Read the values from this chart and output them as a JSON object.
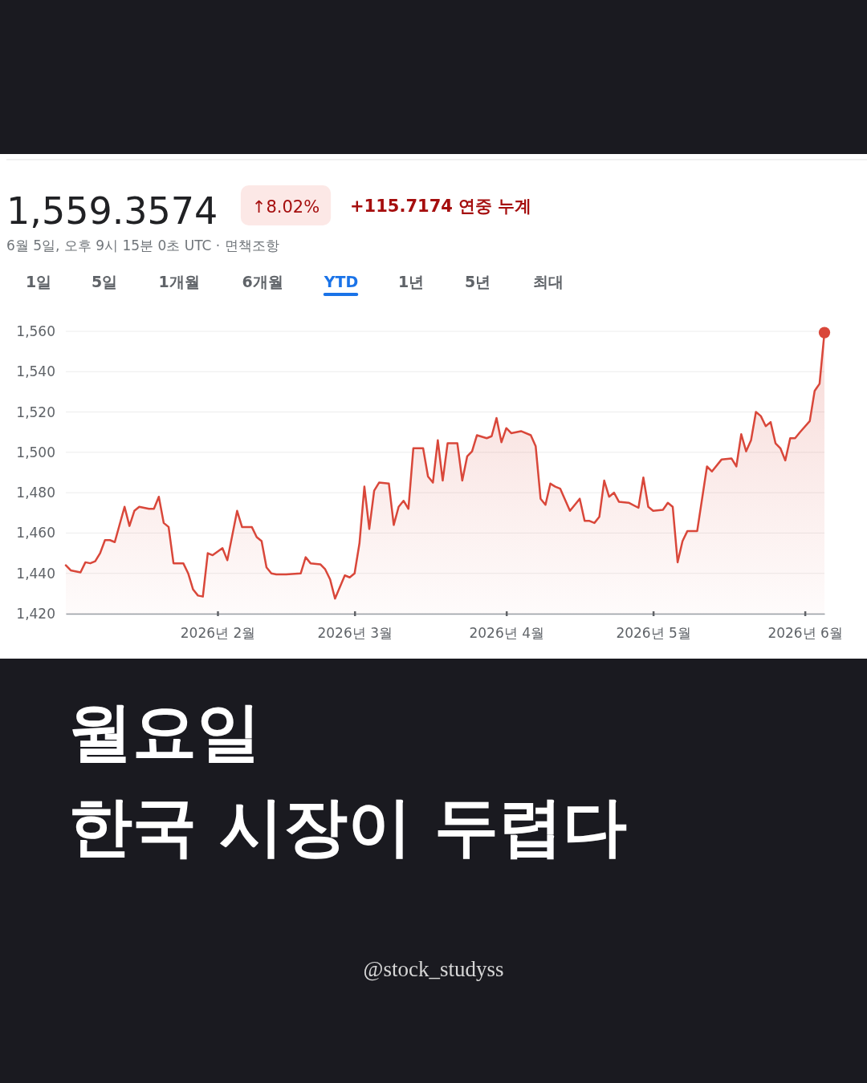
{
  "chart_data": {
    "type": "area",
    "title": "1,559.3574",
    "subtitle": "6월 5일, 오후 9시 15분 0초 UTC · 면책조항",
    "annotations": [
      "↑8.02%",
      "+115.7174 연중 누계",
      "1일",
      "5일",
      "1개월",
      "6개월",
      "YTD",
      "1년",
      "5년",
      "최대",
      "월요일",
      "한국 시장이 두렵다",
      "@stock_studyss"
    ],
    "xlim": [
      "2026-01-01",
      "2026-06-05"
    ],
    "xticks": [
      {
        "value": "2026-02-01",
        "label": "2026년 2월"
      },
      {
        "value": "2026-03-01",
        "label": "2026년 3월"
      },
      {
        "value": "2026-04-01",
        "label": "2026년 4월"
      },
      {
        "value": "2026-05-01",
        "label": "2026년 5월"
      },
      {
        "value": "2026-06-01",
        "label": "2026년 6월"
      }
    ],
    "ylim": [
      1420,
      1560
    ],
    "yticks": [
      {
        "value": 1420,
        "label": "1,420"
      },
      {
        "value": 1440,
        "label": "1,440"
      },
      {
        "value": 1460,
        "label": "1,460"
      },
      {
        "value": 1480,
        "label": "1,480"
      },
      {
        "value": 1500,
        "label": "1,500"
      },
      {
        "value": 1520,
        "label": "1,520"
      },
      {
        "value": 1540,
        "label": "1,540"
      },
      {
        "value": 1560,
        "label": "1,560"
      }
    ],
    "grid": "y",
    "series": [
      {
        "color": "#d9473a",
        "x": [
          "2026-01-01",
          "2026-01-02",
          "2026-01-04",
          "2026-01-05",
          "2026-01-06",
          "2026-01-07",
          "2026-01-08",
          "2026-01-09",
          "2026-01-10",
          "2026-01-11",
          "2026-01-13",
          "2026-01-14",
          "2026-01-15",
          "2026-01-16",
          "2026-01-18",
          "2026-01-19",
          "2026-01-20",
          "2026-01-21",
          "2026-01-22",
          "2026-01-23",
          "2026-01-25",
          "2026-01-26",
          "2026-01-27",
          "2026-01-28",
          "2026-01-29",
          "2026-01-30",
          "2026-01-31",
          "2026-02-02",
          "2026-02-03",
          "2026-02-05",
          "2026-02-06",
          "2026-02-08",
          "2026-02-09",
          "2026-02-10",
          "2026-02-11",
          "2026-02-12",
          "2026-02-13",
          "2026-02-15",
          "2026-02-18",
          "2026-02-19",
          "2026-02-20",
          "2026-02-22",
          "2026-02-23",
          "2026-02-24",
          "2026-02-25",
          "2026-02-27",
          "2026-02-28",
          "2026-03-01",
          "2026-03-02",
          "2026-03-03",
          "2026-03-04",
          "2026-03-05",
          "2026-03-06",
          "2026-03-08",
          "2026-03-09",
          "2026-03-10",
          "2026-03-11",
          "2026-03-12",
          "2026-03-13",
          "2026-03-15",
          "2026-03-16",
          "2026-03-17",
          "2026-03-18",
          "2026-03-19",
          "2026-03-20",
          "2026-03-22",
          "2026-03-23",
          "2026-03-24",
          "2026-03-25",
          "2026-03-26",
          "2026-03-28",
          "2026-03-29",
          "2026-03-30",
          "2026-03-31",
          "2026-04-01",
          "2026-04-02",
          "2026-04-04",
          "2026-04-06",
          "2026-04-07",
          "2026-04-08",
          "2026-04-09",
          "2026-04-10",
          "2026-04-11",
          "2026-04-12",
          "2026-04-14",
          "2026-04-16",
          "2026-04-17",
          "2026-04-18",
          "2026-04-19",
          "2026-04-20",
          "2026-04-21",
          "2026-04-22",
          "2026-04-23",
          "2026-04-24",
          "2026-04-26",
          "2026-04-28",
          "2026-04-29",
          "2026-04-30",
          "2026-05-01",
          "2026-05-03",
          "2026-05-04",
          "2026-05-05",
          "2026-05-06",
          "2026-05-07",
          "2026-05-08",
          "2026-05-10",
          "2026-05-12",
          "2026-05-13",
          "2026-05-15",
          "2026-05-17",
          "2026-05-18",
          "2026-05-19",
          "2026-05-20",
          "2026-05-21",
          "2026-05-22",
          "2026-05-23",
          "2026-05-24",
          "2026-05-25",
          "2026-05-26",
          "2026-05-27",
          "2026-05-28",
          "2026-05-29",
          "2026-05-30",
          "2026-05-31",
          "2026-06-02",
          "2026-06-03",
          "2026-06-04",
          "2026-06-05"
        ],
        "values": [
          1444,
          1441.5,
          1440.5,
          1445.5,
          1445,
          1446,
          1450,
          1456.5,
          1456.5,
          1455.5,
          1473,
          1463.5,
          1471,
          1473,
          1472,
          1472,
          1478,
          1465,
          1463,
          1445,
          1445,
          1440,
          1432,
          1429,
          1428.5,
          1450,
          1449,
          1452.5,
          1446.5,
          1471,
          1463,
          1463,
          1458,
          1456,
          1443,
          1440,
          1439.5,
          1439.5,
          1440,
          1448,
          1445,
          1444.5,
          1442,
          1437,
          1427.5,
          1439,
          1438,
          1440,
          1455,
          1483,
          1462,
          1481,
          1485,
          1484.5,
          1464,
          1473,
          1476,
          1472,
          1502,
          1502,
          1488,
          1485,
          1506,
          1486,
          1504.5,
          1504.5,
          1486,
          1498,
          1500.5,
          1508.5,
          1507,
          1508,
          1517,
          1505,
          1512,
          1509.5,
          1510.5,
          1508.5,
          1503,
          1477,
          1474,
          1484.5,
          1483,
          1482,
          1471,
          1477,
          1466,
          1466,
          1465,
          1468,
          1486,
          1478,
          1480,
          1475.5,
          1475,
          1472.5,
          1487.5,
          1473,
          1471,
          1471.5,
          1475,
          1473,
          1445.5,
          1456,
          1461,
          1461,
          1493,
          1490.5,
          1496.5,
          1497,
          1493,
          1509,
          1500.5,
          1506,
          1520,
          1518,
          1513,
          1515,
          1504.5,
          1502,
          1496,
          1507,
          1507,
          1510,
          1515.5,
          1530.5,
          1534,
          1559.3574
        ]
      },
      {
        "type": "scatter",
        "color": "#d9473a",
        "marker": "circle",
        "x": [
          "2026-06-05"
        ],
        "values": [
          1559.3574
        ]
      }
    ]
  }
}
